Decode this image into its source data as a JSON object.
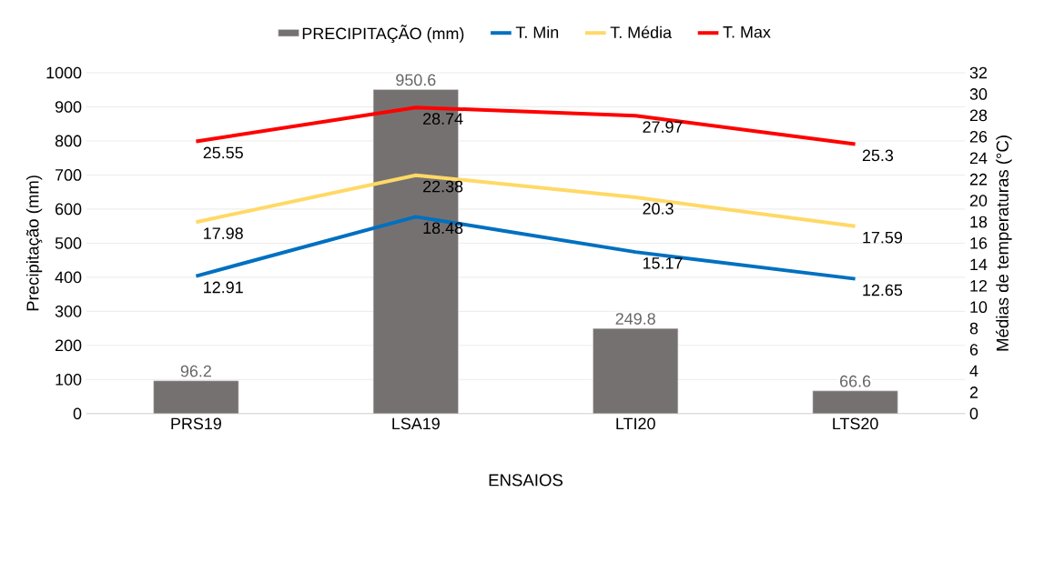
{
  "chart_data": {
    "type": "bar",
    "xlabel": "ENSAIOS",
    "ylabel": "Precipitação (mm)",
    "y2label": "Médias de temperaturas (°C)",
    "categories": [
      "PRS19",
      "LSA19",
      "LTI20",
      "LTS20"
    ],
    "series": [
      {
        "name": "PRECIPITAÇÃO (mm)",
        "color": "#767171",
        "values": [
          96.2,
          950.6,
          249.8,
          66.6
        ]
      },
      {
        "name": "T. Min",
        "type": "line",
        "axis": "y2",
        "color": "#0070c0",
        "values": [
          12.91,
          18.48,
          15.17,
          12.65
        ]
      },
      {
        "name": "T. Média",
        "type": "line",
        "axis": "y2",
        "color": "#ffd966",
        "values": [
          17.98,
          22.38,
          20.3,
          17.59
        ]
      },
      {
        "name": "T. Max",
        "type": "line",
        "axis": "y2",
        "color": "#ff0000",
        "values": [
          25.55,
          28.74,
          27.97,
          25.3
        ]
      }
    ],
    "ylim": [
      0,
      1000
    ],
    "yticks": [
      0,
      100,
      200,
      300,
      400,
      500,
      600,
      700,
      800,
      900,
      1000
    ],
    "y2lim": [
      0,
      32
    ],
    "y2ticks": [
      0,
      2,
      4,
      6,
      8,
      10,
      12,
      14,
      16,
      18,
      20,
      22,
      24,
      26,
      28,
      30,
      32
    ],
    "grid": "y",
    "legend": "top",
    "data_labels": true
  }
}
